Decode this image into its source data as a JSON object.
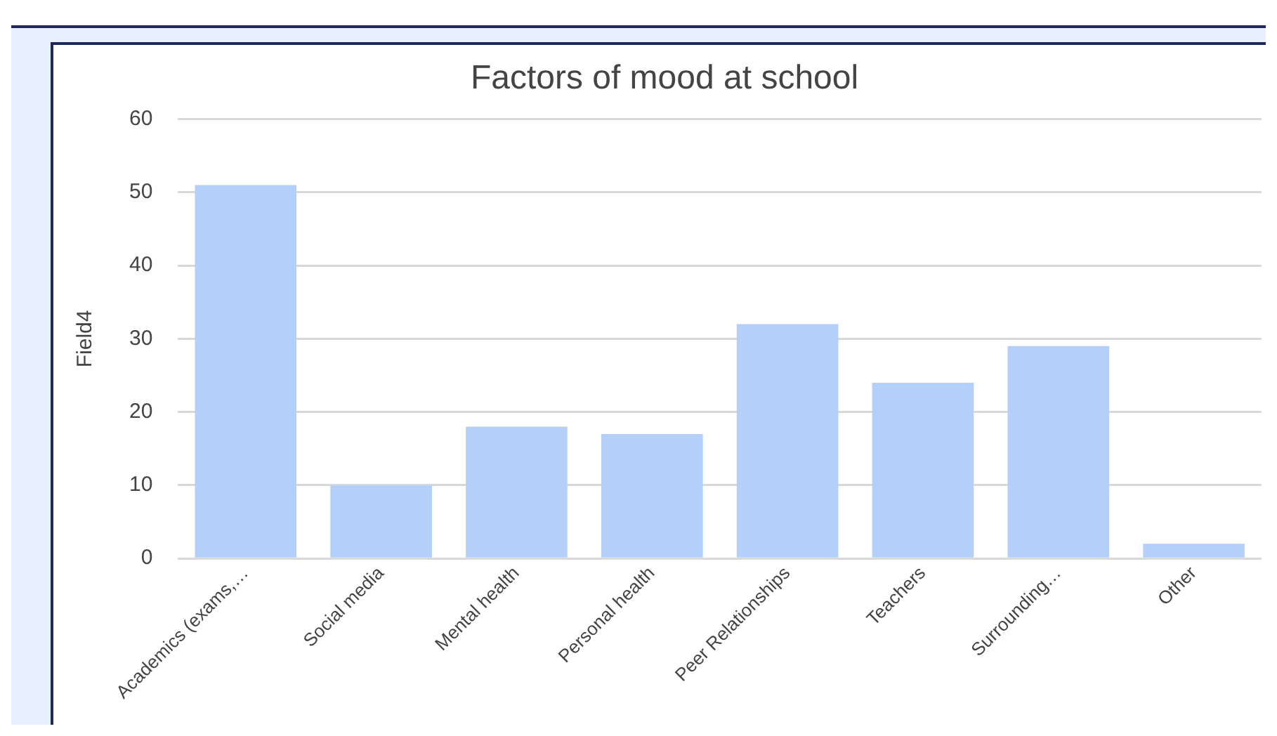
{
  "chart_data": {
    "type": "bar",
    "title": "Factors of mood at school",
    "ylabel": "Field4",
    "categories": [
      "Academics (exams,…",
      "Social media",
      "Mental health",
      "Personal health",
      "Peer Relationships",
      "Teachers",
      "Surrounding…",
      "Other"
    ],
    "values": [
      51,
      10,
      18,
      17,
      32,
      24,
      29,
      2
    ],
    "color": "#b4cffa",
    "ylim": [
      0,
      60
    ],
    "yticks": [
      0,
      10,
      20,
      30,
      40,
      50,
      60
    ],
    "grid": "y",
    "legend": false
  }
}
